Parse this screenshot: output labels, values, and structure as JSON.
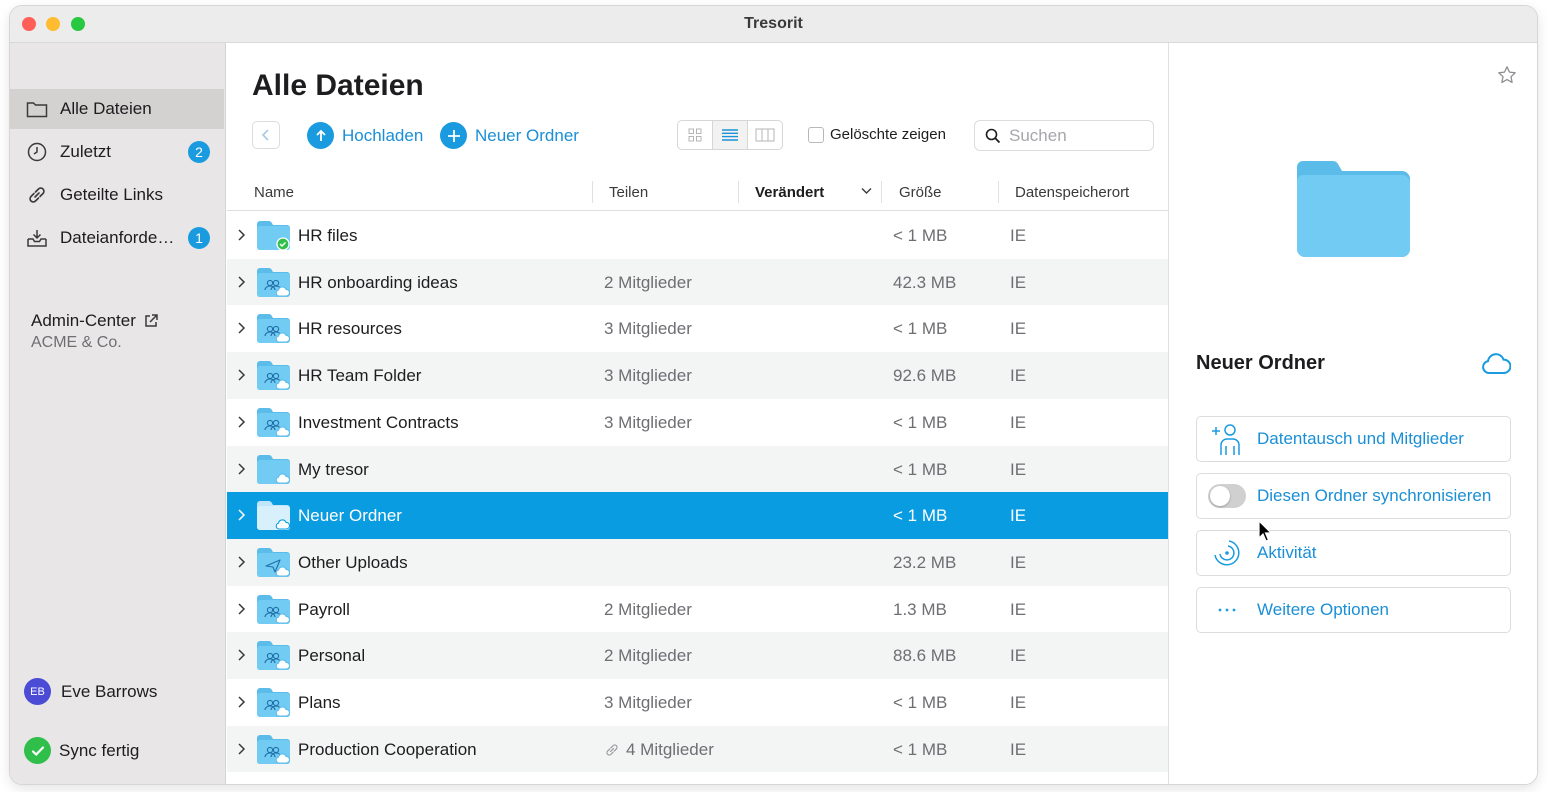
{
  "window": {
    "title": "Tresorit"
  },
  "sidebar": {
    "items": [
      {
        "label": "Alle Dateien",
        "icon": "folder-icon",
        "active": true
      },
      {
        "label": "Zuletzt",
        "icon": "clock-icon",
        "badge": "2"
      },
      {
        "label": "Geteilte Links",
        "icon": "link-icon"
      },
      {
        "label": "Dateianforde…",
        "icon": "inbox-icon",
        "badge": "1"
      }
    ],
    "admin_label": "Admin-Center",
    "admin_org": "ACME & Co.",
    "user_initials": "EB",
    "user_name": "Eve Barrows",
    "sync_status": "Sync fertig"
  },
  "main": {
    "title": "Alle Dateien",
    "upload_label": "Hochladen",
    "new_folder_label": "Neuer Ordner",
    "show_deleted_label": "Gelöschte zeigen",
    "search_placeholder": "Suchen",
    "columns": {
      "name": "Name",
      "share": "Teilen",
      "modified": "Verändert",
      "size": "Größe",
      "location": "Datenspeicherort"
    },
    "rows": [
      {
        "name": "HR files",
        "share": "",
        "size": "< 1 MB",
        "loc": "IE",
        "type": "synced"
      },
      {
        "name": "HR onboarding ideas",
        "share": "2 Mitglieder",
        "size": "42.3 MB",
        "loc": "IE",
        "type": "shared"
      },
      {
        "name": "HR resources",
        "share": "3 Mitglieder",
        "size": "< 1 MB",
        "loc": "IE",
        "type": "shared"
      },
      {
        "name": "HR Team Folder",
        "share": "3 Mitglieder",
        "size": "92.6 MB",
        "loc": "IE",
        "type": "shared"
      },
      {
        "name": "Investment Contracts",
        "share": "3 Mitglieder",
        "size": "< 1 MB",
        "loc": "IE",
        "type": "shared"
      },
      {
        "name": "My tresor",
        "share": "",
        "size": "< 1 MB",
        "loc": "IE",
        "type": "cloud"
      },
      {
        "name": "Neuer Ordner",
        "share": "",
        "size": "< 1 MB",
        "loc": "IE",
        "type": "cloud",
        "selected": true
      },
      {
        "name": "Other Uploads",
        "share": "",
        "size": "23.2 MB",
        "loc": "IE",
        "type": "upload"
      },
      {
        "name": "Payroll",
        "share": "2 Mitglieder",
        "size": "1.3 MB",
        "loc": "IE",
        "type": "shared"
      },
      {
        "name": "Personal",
        "share": "2 Mitglieder",
        "size": "88.6 MB",
        "loc": "IE",
        "type": "shared"
      },
      {
        "name": "Plans",
        "share": "3 Mitglieder",
        "size": "< 1 MB",
        "loc": "IE",
        "type": "shared"
      },
      {
        "name": "Production Cooperation",
        "share": "4 Mitglieder",
        "size": "< 1 MB",
        "loc": "IE",
        "type": "shared",
        "link": true
      }
    ]
  },
  "detail": {
    "title": "Neuer Ordner",
    "actions": {
      "members": "Datentausch und Mitglieder",
      "sync": "Diesen Ordner synchronisieren",
      "activity": "Aktivität",
      "more": "Weitere Optionen"
    }
  },
  "colors": {
    "accent": "#1a9be0",
    "selected_row": "#0a9ce0",
    "folder": "#6ec6f0"
  }
}
